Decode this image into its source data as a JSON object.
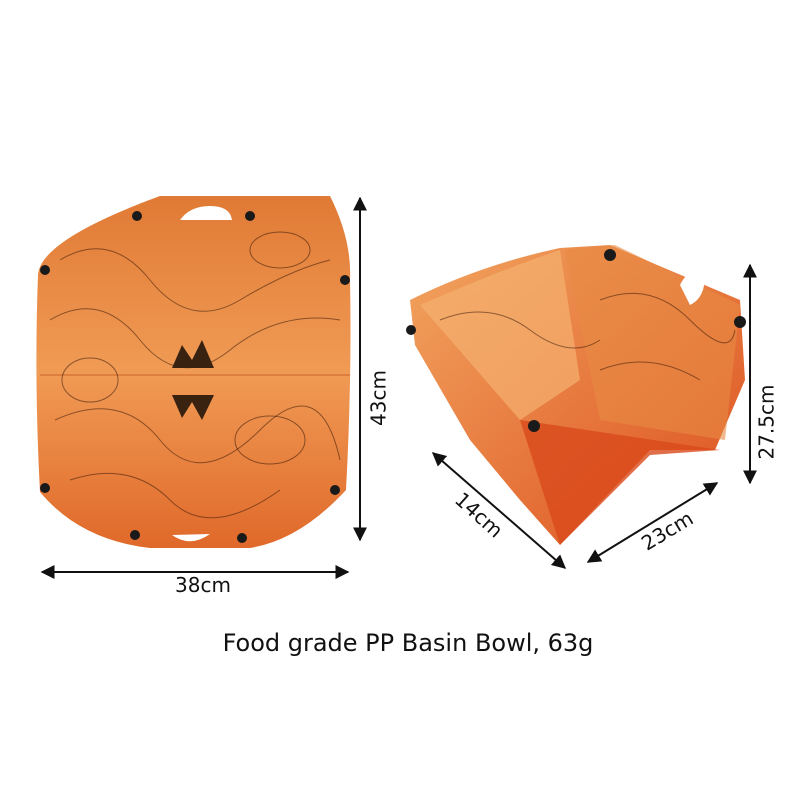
{
  "dimensions": {
    "flat_height": "43cm",
    "flat_width": "38cm",
    "bowl_height": "27.5cm",
    "bowl_depth": "14cm",
    "bowl_width": "23cm"
  },
  "caption": "Food grade PP Basin Bowl, 63g"
}
